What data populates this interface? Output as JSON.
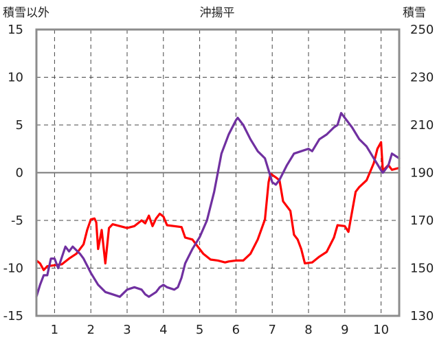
{
  "chart_data": {
    "type": "line",
    "title": "沖揚平",
    "left_axis_label": "積雪以外",
    "right_axis_label": "積雪",
    "x_ticks": [
      "1",
      "2",
      "3",
      "4",
      "5",
      "6",
      "7",
      "8",
      "9",
      "10"
    ],
    "xlim": [
      0.5,
      10.5
    ],
    "ylim_left": [
      -15,
      15
    ],
    "ylim_right": [
      130,
      250
    ],
    "left_ticks": [
      "-15",
      "-10",
      "-5",
      "0",
      "5",
      "10",
      "15"
    ],
    "right_ticks": [
      "130",
      "150",
      "170",
      "190",
      "210",
      "230",
      "250"
    ],
    "grid": true,
    "colors": {
      "series_red": "#ff0000",
      "series_purple": "#7030a0",
      "frame": "#8c8c8c"
    },
    "series": [
      {
        "axis": "left",
        "color": "#ff0000",
        "points": [
          [
            0.5,
            -9.2
          ],
          [
            0.6,
            -9.5
          ],
          [
            0.7,
            -10.2
          ],
          [
            0.8,
            -9.8
          ],
          [
            1.0,
            -9.7
          ],
          [
            1.2,
            -9.6
          ],
          [
            1.4,
            -9.0
          ],
          [
            1.6,
            -8.5
          ],
          [
            1.8,
            -7.5
          ],
          [
            1.9,
            -6.0
          ],
          [
            2.0,
            -4.9
          ],
          [
            2.1,
            -4.8
          ],
          [
            2.15,
            -5.2
          ],
          [
            2.2,
            -8.0
          ],
          [
            2.3,
            -6.0
          ],
          [
            2.4,
            -9.5
          ],
          [
            2.5,
            -5.8
          ],
          [
            2.6,
            -5.4
          ],
          [
            2.8,
            -5.6
          ],
          [
            3.0,
            -5.8
          ],
          [
            3.2,
            -5.6
          ],
          [
            3.4,
            -5.0
          ],
          [
            3.5,
            -5.3
          ],
          [
            3.6,
            -4.5
          ],
          [
            3.7,
            -5.6
          ],
          [
            3.8,
            -4.8
          ],
          [
            3.9,
            -4.3
          ],
          [
            4.0,
            -4.6
          ],
          [
            4.1,
            -5.5
          ],
          [
            4.3,
            -5.6
          ],
          [
            4.5,
            -5.7
          ],
          [
            4.6,
            -6.8
          ],
          [
            4.8,
            -7.0
          ],
          [
            4.9,
            -7.5
          ],
          [
            5.1,
            -8.5
          ],
          [
            5.3,
            -9.1
          ],
          [
            5.5,
            -9.2
          ],
          [
            5.7,
            -9.4
          ],
          [
            5.8,
            -9.3
          ],
          [
            6.0,
            -9.2
          ],
          [
            6.2,
            -9.2
          ],
          [
            6.4,
            -8.5
          ],
          [
            6.6,
            -7.0
          ],
          [
            6.8,
            -4.9
          ],
          [
            6.9,
            -1.0
          ],
          [
            6.95,
            -0.1
          ],
          [
            7.1,
            -0.5
          ],
          [
            7.2,
            -0.8
          ],
          [
            7.3,
            -3.0
          ],
          [
            7.5,
            -4.0
          ],
          [
            7.6,
            -6.5
          ],
          [
            7.7,
            -7.0
          ],
          [
            7.8,
            -8.0
          ],
          [
            7.9,
            -9.5
          ],
          [
            8.1,
            -9.4
          ],
          [
            8.3,
            -8.8
          ],
          [
            8.5,
            -8.3
          ],
          [
            8.7,
            -6.8
          ],
          [
            8.8,
            -5.5
          ],
          [
            9.0,
            -5.6
          ],
          [
            9.1,
            -6.2
          ],
          [
            9.3,
            -2.0
          ],
          [
            9.4,
            -1.5
          ],
          [
            9.6,
            -0.8
          ],
          [
            9.8,
            1.0
          ],
          [
            9.9,
            2.5
          ],
          [
            10.0,
            3.2
          ],
          [
            10.05,
            0.2
          ],
          [
            10.2,
            0.8
          ],
          [
            10.3,
            0.3
          ],
          [
            10.5,
            0.5
          ]
        ]
      },
      {
        "axis": "right",
        "color": "#7030a0",
        "points": [
          [
            0.5,
            138
          ],
          [
            0.6,
            143
          ],
          [
            0.7,
            147
          ],
          [
            0.8,
            147
          ],
          [
            0.9,
            154
          ],
          [
            1.0,
            154
          ],
          [
            1.1,
            150
          ],
          [
            1.3,
            159
          ],
          [
            1.4,
            157
          ],
          [
            1.5,
            159
          ],
          [
            1.7,
            156
          ],
          [
            1.8,
            154
          ],
          [
            2.0,
            148
          ],
          [
            2.2,
            143
          ],
          [
            2.4,
            140
          ],
          [
            2.6,
            139
          ],
          [
            2.8,
            138
          ],
          [
            3.0,
            141
          ],
          [
            3.2,
            142
          ],
          [
            3.4,
            141
          ],
          [
            3.5,
            139
          ],
          [
            3.6,
            138
          ],
          [
            3.8,
            140
          ],
          [
            3.9,
            142
          ],
          [
            4.0,
            143
          ],
          [
            4.1,
            142
          ],
          [
            4.3,
            141
          ],
          [
            4.4,
            142
          ],
          [
            4.5,
            146
          ],
          [
            4.6,
            152
          ],
          [
            4.8,
            158
          ],
          [
            5.0,
            163
          ],
          [
            5.2,
            170
          ],
          [
            5.4,
            182
          ],
          [
            5.6,
            198
          ],
          [
            5.8,
            206
          ],
          [
            6.0,
            212
          ],
          [
            6.05,
            213
          ],
          [
            6.2,
            210
          ],
          [
            6.4,
            204
          ],
          [
            6.6,
            199
          ],
          [
            6.8,
            196
          ],
          [
            6.9,
            191
          ],
          [
            7.0,
            186
          ],
          [
            7.1,
            185
          ],
          [
            7.2,
            187
          ],
          [
            7.4,
            193
          ],
          [
            7.6,
            198
          ],
          [
            7.8,
            199
          ],
          [
            8.0,
            200
          ],
          [
            8.1,
            199
          ],
          [
            8.3,
            204
          ],
          [
            8.5,
            206
          ],
          [
            8.7,
            209
          ],
          [
            8.8,
            210
          ],
          [
            8.9,
            215
          ],
          [
            9.0,
            213
          ],
          [
            9.2,
            209
          ],
          [
            9.4,
            204
          ],
          [
            9.6,
            201
          ],
          [
            9.8,
            196
          ],
          [
            10.0,
            191
          ],
          [
            10.05,
            190
          ],
          [
            10.2,
            193
          ],
          [
            10.3,
            198
          ],
          [
            10.5,
            196
          ]
        ]
      }
    ]
  }
}
